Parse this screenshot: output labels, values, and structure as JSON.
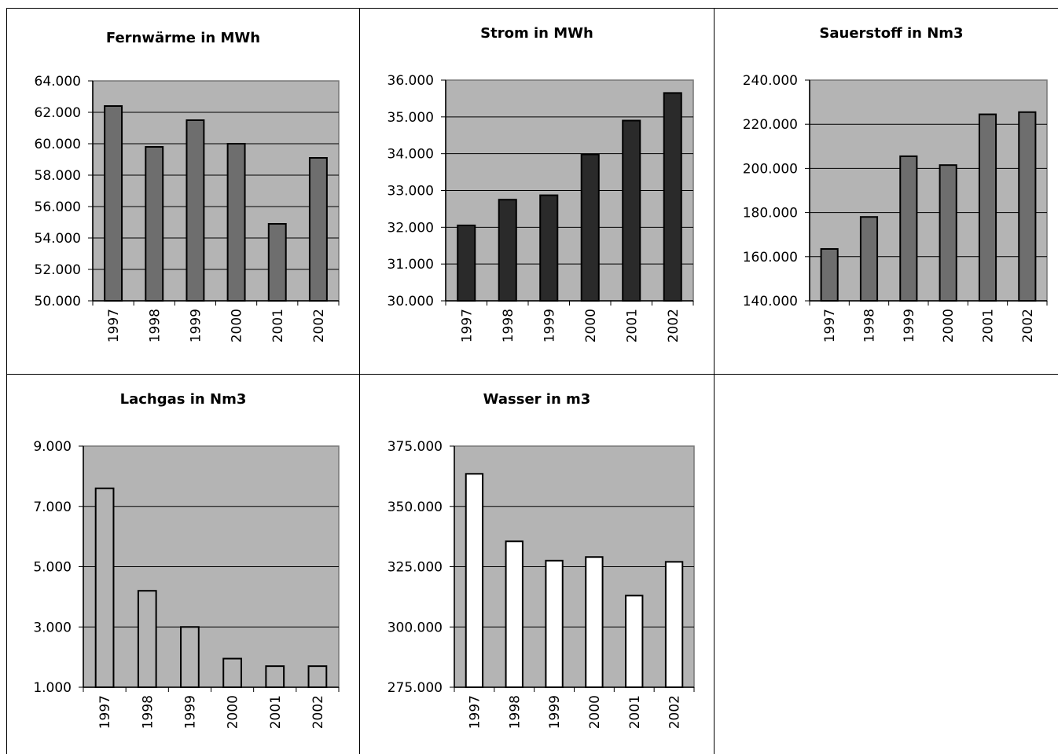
{
  "chart_data": [
    {
      "type": "bar",
      "title": "Fernwärme in MWh",
      "categories": [
        "1997",
        "1998",
        "1999",
        "2000",
        "2001",
        "2002"
      ],
      "values": [
        62400,
        59800,
        61500,
        60000,
        54900,
        59100
      ],
      "ylim": [
        50000,
        64000
      ],
      "yticks": [
        50000,
        52000,
        54000,
        56000,
        58000,
        60000,
        62000,
        64000
      ],
      "ytick_labels": [
        "50.000",
        "52.000",
        "54.000",
        "56.000",
        "58.000",
        "60.000",
        "62.000",
        "64.000"
      ],
      "grid": true,
      "colors": {
        "bar": "#6e6e6e",
        "plot_bg": "#b4b4b4"
      }
    },
    {
      "type": "bar",
      "title": "Strom in MWh",
      "categories": [
        "1997",
        "1998",
        "1999",
        "2000",
        "2001",
        "2002"
      ],
      "values": [
        32050,
        32750,
        32870,
        33980,
        34900,
        35650
      ],
      "ylim": [
        30000,
        36000
      ],
      "yticks": [
        30000,
        31000,
        32000,
        33000,
        34000,
        35000,
        36000
      ],
      "ytick_labels": [
        "30.000",
        "31.000",
        "32.000",
        "33.000",
        "34.000",
        "35.000",
        "36.000"
      ],
      "grid": true,
      "colors": {
        "bar": "#2a2a2a",
        "plot_bg": "#b4b4b4"
      }
    },
    {
      "type": "bar",
      "title": "Sauerstoff in Nm3",
      "categories": [
        "1997",
        "1998",
        "1999",
        "2000",
        "2001",
        "2002"
      ],
      "values": [
        163500,
        178000,
        205500,
        201500,
        224500,
        225500
      ],
      "ylim": [
        140000,
        240000
      ],
      "yticks": [
        140000,
        160000,
        180000,
        200000,
        220000,
        240000
      ],
      "ytick_labels": [
        "140.000",
        "160.000",
        "180.000",
        "200.000",
        "220.000",
        "240.000"
      ],
      "grid": true,
      "colors": {
        "bar": "#6e6e6e",
        "plot_bg": "#b4b4b4"
      }
    },
    {
      "type": "bar",
      "title": "Lachgas in Nm3",
      "categories": [
        "1997",
        "1998",
        "1999",
        "2000",
        "2001",
        "2002"
      ],
      "values": [
        7600,
        4200,
        3000,
        1950,
        1700,
        1700
      ],
      "ylim": [
        1000,
        9000
      ],
      "yticks": [
        1000,
        3000,
        5000,
        7000,
        9000
      ],
      "ytick_labels": [
        "1.000",
        "3.000",
        "5.000",
        "7.000",
        "9.000"
      ],
      "grid": true,
      "colors": {
        "bar": "#b4b4b4",
        "plot_bg": "#b4b4b4"
      }
    },
    {
      "type": "bar",
      "title": "Wasser in m3",
      "categories": [
        "1997",
        "1998",
        "1999",
        "2000",
        "2001",
        "2002"
      ],
      "values": [
        363500,
        335500,
        327500,
        329000,
        313000,
        327000
      ],
      "ylim": [
        275000,
        375000
      ],
      "yticks": [
        275000,
        300000,
        325000,
        350000,
        375000
      ],
      "ytick_labels": [
        "275.000",
        "300.000",
        "325.000",
        "350.000",
        "375.000"
      ],
      "grid": true,
      "colors": {
        "bar": "#ffffff",
        "plot_bg": "#b4b4b4"
      }
    }
  ]
}
